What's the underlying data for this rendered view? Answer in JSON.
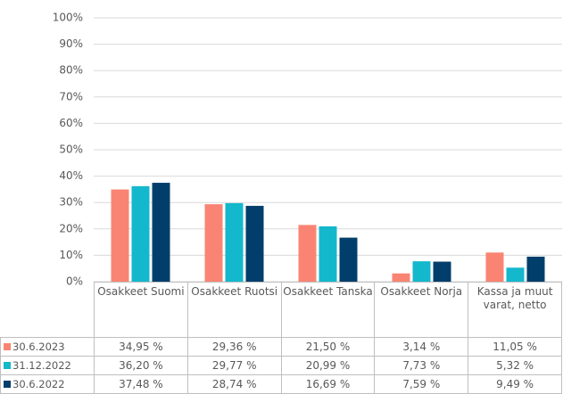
{
  "chart_data": {
    "type": "bar",
    "categories": [
      "Osakkeet Suomi",
      "Osakkeet Ruotsi",
      "Osakkeet Tanska",
      "Osakkeet Norja",
      "Kassa ja muut varat, netto"
    ],
    "series": [
      {
        "name": "30.6.2023",
        "color": "#fa8473",
        "values": [
          34.95,
          29.36,
          21.5,
          3.14,
          11.05
        ],
        "value_labels": [
          "34,95 %",
          "29,36 %",
          "21,50 %",
          "3,14 %",
          "11,05 %"
        ]
      },
      {
        "name": "31.12.2022",
        "color": "#14b8cc",
        "values": [
          36.2,
          29.77,
          20.99,
          7.73,
          5.32
        ],
        "value_labels": [
          "36,20 %",
          "29,77 %",
          "20,99 %",
          "7,73 %",
          "5,32 %"
        ]
      },
      {
        "name": "30.6.2022",
        "color": "#023e6b",
        "values": [
          37.48,
          28.74,
          16.69,
          7.59,
          9.49
        ],
        "value_labels": [
          "37,48 %",
          "28,74 %",
          "16,69 %",
          "7,59 %",
          "9,49 %"
        ]
      }
    ],
    "ylim": [
      0,
      100
    ],
    "yticks": [
      {
        "value": 0,
        "label": "0%"
      },
      {
        "value": 10,
        "label": "10%"
      },
      {
        "value": 20,
        "label": "20%"
      },
      {
        "value": 30,
        "label": "30%"
      },
      {
        "value": 40,
        "label": "40%"
      },
      {
        "value": 50,
        "label": "50%"
      },
      {
        "value": 60,
        "label": "60%"
      },
      {
        "value": 70,
        "label": "70%"
      },
      {
        "value": 80,
        "label": "80%"
      },
      {
        "value": 90,
        "label": "90%"
      },
      {
        "value": 100,
        "label": "100%"
      }
    ],
    "grid": true
  }
}
